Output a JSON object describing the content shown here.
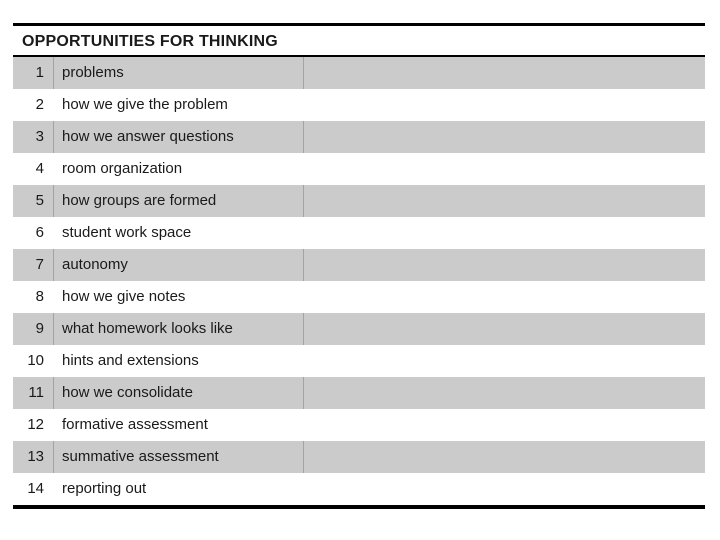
{
  "table": {
    "title": "OPPORTUNITIES FOR THINKING",
    "rows": [
      {
        "num": "1",
        "label": "problems",
        "shaded": true
      },
      {
        "num": "2",
        "label": "how we give the problem",
        "shaded": false
      },
      {
        "num": "3",
        "label": "how we answer questions",
        "shaded": true
      },
      {
        "num": "4",
        "label": "room organization",
        "shaded": false
      },
      {
        "num": "5",
        "label": "how groups are formed",
        "shaded": true
      },
      {
        "num": "6",
        "label": "student work space",
        "shaded": false
      },
      {
        "num": "7",
        "label": "autonomy",
        "shaded": true
      },
      {
        "num": "8",
        "label": "how we give notes",
        "shaded": false
      },
      {
        "num": "9",
        "label": "what homework looks like",
        "shaded": true
      },
      {
        "num": "10",
        "label": "hints and extensions",
        "shaded": false
      },
      {
        "num": "11",
        "label": "how we consolidate",
        "shaded": true
      },
      {
        "num": "12",
        "label": "formative assessment",
        "shaded": false
      },
      {
        "num": "13",
        "label": "summative assessment",
        "shaded": true
      },
      {
        "num": "14",
        "label": "reporting out",
        "shaded": false
      }
    ],
    "colors": {
      "shaded_row": "#cbcbcb",
      "divider": "#a3a3a3",
      "border": "#000000",
      "text": "#1a1a1a",
      "background": "#ffffff"
    }
  }
}
